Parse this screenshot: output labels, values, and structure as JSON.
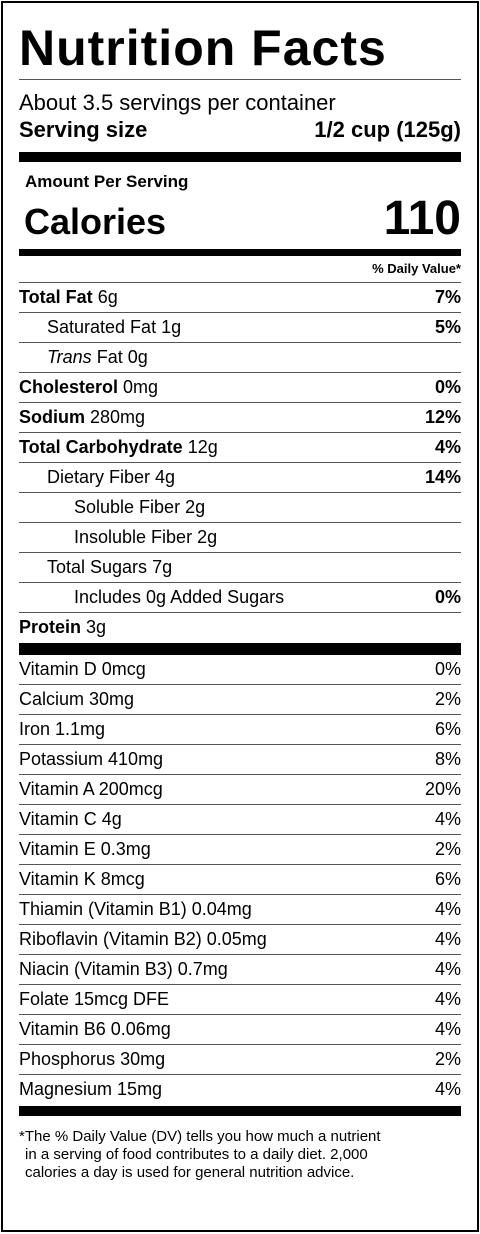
{
  "title": "Nutrition Facts",
  "servings_per_container": "About 3.5 servings per container",
  "serving_size": {
    "label": "Serving size",
    "value": "1/2 cup (125g)"
  },
  "amount_per_serving": "Amount Per Serving",
  "calories": {
    "label": "Calories",
    "value": "110"
  },
  "daily_value_header": "% Daily Value*",
  "nutrients": [
    {
      "name": "Total Fat",
      "amount": "6g",
      "dv": "7%"
    },
    {
      "name": "Saturated Fat",
      "amount": "1g",
      "dv": "5%"
    },
    {
      "name": "Trans",
      "suffix": "Fat",
      "amount": "0g",
      "dv": ""
    },
    {
      "name": "Cholesterol",
      "amount": "0mg",
      "dv": "0%"
    },
    {
      "name": "Sodium",
      "amount": "280mg",
      "dv": "12%"
    },
    {
      "name": "Total Carbohydrate",
      "amount": "12g",
      "dv": "4%"
    },
    {
      "name": "Dietary Fiber",
      "amount": "4g",
      "dv": "14%"
    },
    {
      "name": "Soluble Fiber",
      "amount": "2g",
      "dv": ""
    },
    {
      "name": "Insoluble Fiber",
      "amount": "2g",
      "dv": ""
    },
    {
      "name": "Total Sugars",
      "amount": "7g",
      "dv": ""
    },
    {
      "name": "Includes 0g Added Sugars",
      "amount": "",
      "dv": "0%"
    },
    {
      "name": "Protein",
      "amount": "3g",
      "dv": ""
    }
  ],
  "vitamins": [
    {
      "label": "Vitamin D 0mcg",
      "dv": "0%"
    },
    {
      "label": "Calcium 30mg",
      "dv": "2%"
    },
    {
      "label": "Iron 1.1mg",
      "dv": "6%"
    },
    {
      "label": "Potassium 410mg",
      "dv": "8%"
    },
    {
      "label": "Vitamin A 200mcg",
      "dv": "20%"
    },
    {
      "label": "Vitamin C 4g",
      "dv": "4%"
    },
    {
      "label": "Vitamin E 0.3mg",
      "dv": "2%"
    },
    {
      "label": "Vitamin K 8mcg",
      "dv": "6%"
    },
    {
      "label": "Thiamin (Vitamin B1) 0.04mg",
      "dv": "4%"
    },
    {
      "label": "Riboflavin (Vitamin B2) 0.05mg",
      "dv": "4%"
    },
    {
      "label": "Niacin (Vitamin B3) 0.7mg",
      "dv": "4%"
    },
    {
      "label": "Folate 15mcg DFE",
      "dv": "4%"
    },
    {
      "label": "Vitamin B6 0.06mg",
      "dv": "4%"
    },
    {
      "label": "Phosphorus 30mg",
      "dv": "2%"
    },
    {
      "label": "Magnesium 15mg",
      "dv": "4%"
    }
  ],
  "footnote": {
    "line1": "*The % Daily Value (DV) tells you how much a nutrient",
    "line2": "in a serving of food contributes to a daily diet. 2,000",
    "line3": "calories a day is used for general nutrition advice."
  }
}
